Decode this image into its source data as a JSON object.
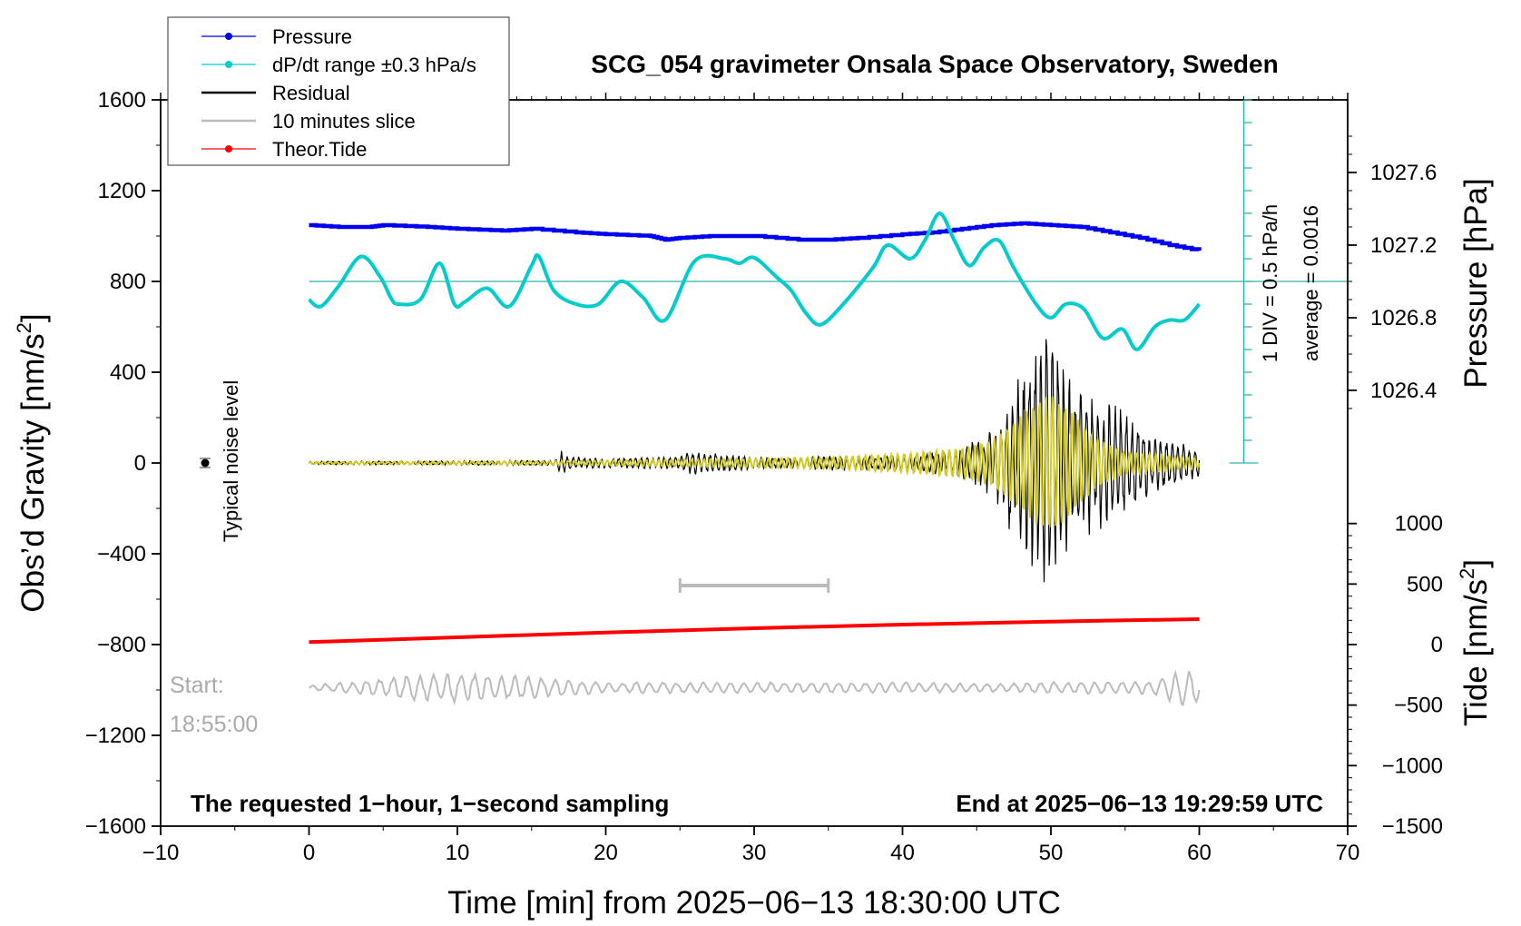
{
  "chart_data": {
    "type": "line",
    "title": "SCG_054 gravimeter Onsala Space Observatory, Sweden",
    "xlabel": "Time [min] from 2025−06−13 18:30:00 UTC",
    "ylabel": "Obs’d Gravity [nm/s",
    "ylabel_sup": "2",
    "ylabel_close": "]",
    "xlim": [
      -10,
      70
    ],
    "ylim": [
      -1600,
      1600
    ],
    "xticks": [
      "−10",
      "0",
      "10",
      "20",
      "30",
      "40",
      "50",
      "60",
      "70"
    ],
    "xtick_values": [
      -10,
      0,
      10,
      20,
      30,
      40,
      50,
      60,
      70
    ],
    "yticks": [
      "−1600",
      "−1200",
      "−800",
      "−400",
      "0",
      "400",
      "800",
      "1200",
      "1600"
    ],
    "ytick_values": [
      -1600,
      -1200,
      -800,
      -400,
      0,
      400,
      800,
      1200,
      1600
    ],
    "pressure_axis": {
      "label": "Pressure [hPa]",
      "ticks": [
        "1026.4",
        "1026.8",
        "1027.2",
        "1027.6"
      ],
      "tick_values": [
        1026.4,
        1026.8,
        1027.2,
        1027.6
      ],
      "gravity_at_1026_4": 320,
      "gravity_at_1027_6": 1280
    },
    "tide_axis": {
      "label": "Tide [nm/s",
      "label_sup": "2",
      "label_close": "]",
      "ticks": [
        "1000",
        "500",
        "0",
        "−500",
        "−1000",
        "−1500"
      ],
      "tick_values": [
        1000,
        500,
        0,
        -500,
        -1000,
        -1500
      ],
      "gravity_at_tide_0": -800,
      "gravity_per_tide_unit": 0.53333
    },
    "legend": [
      {
        "label": "Pressure",
        "color": "#0000ee",
        "marker": true
      },
      {
        "label": "dP/dt range ±0.3 hPa/s",
        "color": "#00cccc",
        "marker": true
      },
      {
        "label": "Residual",
        "color": "#000000",
        "marker": false
      },
      {
        "label": "10 minutes slice",
        "color": "#bbbbbb",
        "marker": false
      },
      {
        "label": "Theor.Tide",
        "color": "#ff0000",
        "marker": true
      }
    ],
    "annotations": {
      "noise_label": "Typical noise level",
      "noise_point": {
        "x": -7,
        "y": 0,
        "err": 20
      },
      "start_label": "Start:",
      "start_time": "18:55:00",
      "bottom_left": "The requested 1−hour, 1−second sampling",
      "bottom_right": "End at 2025−06−13 19:29:59 UTC",
      "scale_div": "1 DIV = 0.5 hPa/h",
      "scale_avg": "average = 0.0016"
    },
    "dpdt_scale": {
      "x": 63,
      "y_bottom": 0,
      "y_top": 1600,
      "divisions": 16,
      "baseline_y": 800
    },
    "ten_minute_slice": {
      "x_start": 25,
      "x_end": 35,
      "y": -540
    },
    "series": [
      {
        "name": "Pressure",
        "color": "#0000ee",
        "unit": "hPa",
        "x": [
          0,
          2,
          4,
          5,
          8,
          10,
          13,
          15,
          18,
          20,
          23,
          24,
          25,
          27,
          30,
          33,
          35,
          37,
          40,
          42,
          44,
          46,
          48,
          50,
          52,
          54,
          56,
          58,
          60
        ],
        "values": [
          1027.31,
          1027.3,
          1027.3,
          1027.31,
          1027.3,
          1027.29,
          1027.28,
          1027.29,
          1027.27,
          1027.26,
          1027.25,
          1027.23,
          1027.24,
          1027.25,
          1027.25,
          1027.23,
          1027.23,
          1027.24,
          1027.26,
          1027.27,
          1027.29,
          1027.31,
          1027.32,
          1027.31,
          1027.3,
          1027.27,
          1027.24,
          1027.2,
          1027.17
        ]
      },
      {
        "name": "dP/dt range ±0.3 hPa/s",
        "color": "#00cccc",
        "unit": "nm/s2 plot units",
        "x": [
          0,
          0.8,
          2,
          3.5,
          4.8,
          5.5,
          6,
          7.5,
          8.8,
          9.8,
          10.5,
          12,
          13.5,
          15,
          15.5,
          16.5,
          18,
          19.5,
          21,
          22.5,
          24,
          26,
          28,
          29,
          30,
          31.5,
          32.5,
          33.5,
          34.5,
          36,
          38,
          39,
          40.5,
          41.5,
          42.5,
          43.5,
          44.5,
          45.5,
          46.5,
          47.5,
          49,
          50,
          51,
          52.2,
          53.5,
          54.8,
          55.8,
          57,
          58,
          59,
          60
        ],
        "values": [
          720,
          690,
          780,
          910,
          820,
          730,
          700,
          720,
          880,
          700,
          710,
          770,
          690,
          870,
          910,
          760,
          700,
          700,
          800,
          730,
          630,
          890,
          900,
          880,
          905,
          820,
          760,
          660,
          610,
          700,
          860,
          960,
          900,
          980,
          1100,
          980,
          870,
          950,
          980,
          860,
          700,
          640,
          700,
          680,
          550,
          590,
          500,
          600,
          630,
          630,
          700
        ]
      },
      {
        "name": "Residual",
        "color": "#000000",
        "unit": "nm/s2",
        "x": [
          0,
          10,
          16.5,
          17,
          17.5,
          20,
          25,
          26,
          27,
          28,
          30,
          33,
          35,
          37,
          40,
          43,
          45,
          46,
          47,
          48,
          49,
          50,
          51,
          52,
          53,
          55,
          57,
          60
        ],
        "envelope": [
          8,
          10,
          12,
          55,
          30,
          22,
          30,
          60,
          50,
          40,
          30,
          20,
          40,
          30,
          35,
          55,
          100,
          160,
          290,
          430,
          620,
          660,
          480,
          380,
          320,
          250,
          130,
          80
        ]
      },
      {
        "name": "10 minutes slice",
        "color": "#bbbbbb",
        "unit": "nm/s2",
        "x": [
          0,
          6,
          8,
          10,
          14,
          20,
          30,
          40,
          45,
          50,
          55,
          57,
          58,
          59,
          60
        ],
        "envelope": [
          10,
          50,
          70,
          70,
          55,
          25,
          25,
          25,
          20,
          25,
          30,
          30,
          70,
          80,
          90
        ]
      },
      {
        "name": "Yellow smoothed residual",
        "color": "#d4cc1e",
        "unit": "nm/s2",
        "x": [
          0,
          16,
          25,
          35,
          40,
          44,
          46,
          47,
          48,
          49,
          50,
          51,
          52,
          53,
          55,
          60
        ],
        "envelope": [
          5,
          8,
          15,
          25,
          40,
          65,
          100,
          150,
          210,
          270,
          300,
          250,
          180,
          110,
          50,
          20
        ]
      },
      {
        "name": "Theor.Tide",
        "color": "#ff0000",
        "unit": "nm/s2 (tide axis)",
        "x": [
          0,
          10,
          20,
          30,
          40,
          50,
          60
        ],
        "values": [
          20,
          60,
          100,
          135,
          165,
          190,
          210
        ]
      }
    ]
  }
}
